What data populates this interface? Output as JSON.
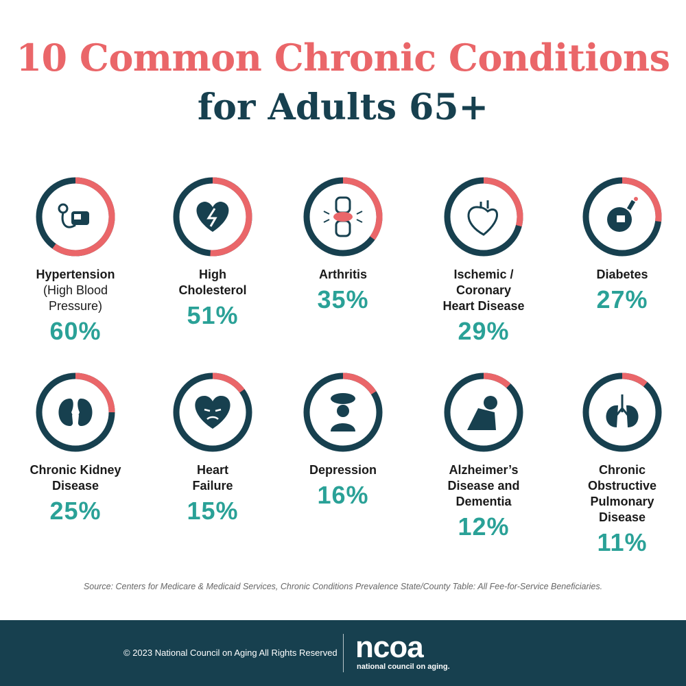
{
  "title_line1": "10 Common Chronic Conditions",
  "title_line2": "for Adults 65+",
  "colors": {
    "ring_filled": "#ea6669",
    "ring_rest": "#17404f",
    "percent": "#2aa197",
    "title_accent": "#ea6669",
    "title_dark": "#17404f"
  },
  "chart_data": {
    "type": "pie",
    "categories": [
      "Hypertension (High Blood Pressure)",
      "High Cholesterol",
      "Arthritis",
      "Ischemic / Coronary Heart Disease",
      "Diabetes",
      "Chronic Kidney Disease",
      "Heart Failure",
      "Depression",
      "Alzheimer’s Disease and Dementia",
      "Chronic Obstructive Pulmonary Disease"
    ],
    "values": [
      60,
      51,
      35,
      29,
      27,
      25,
      15,
      16,
      12,
      11
    ],
    "unit": "%"
  },
  "conditions": [
    {
      "icon": "blood-pressure-monitor-icon",
      "lines": [
        "Hypertension"
      ],
      "sub": [
        "(High Blood",
        "Pressure)"
      ],
      "value": 60,
      "percent": "60%"
    },
    {
      "icon": "broken-heart-icon",
      "lines": [
        "High",
        "Cholesterol"
      ],
      "sub": [],
      "value": 51,
      "percent": "51%"
    },
    {
      "icon": "knee-joint-icon",
      "lines": [
        "Arthritis"
      ],
      "sub": [],
      "value": 35,
      "percent": "35%"
    },
    {
      "icon": "heart-organ-icon",
      "lines": [
        "Ischemic /",
        "Coronary",
        "Heart Disease"
      ],
      "sub": [],
      "value": 29,
      "percent": "29%"
    },
    {
      "icon": "glucose-meter-icon",
      "lines": [
        "Diabetes"
      ],
      "sub": [],
      "value": 27,
      "percent": "27%"
    },
    {
      "icon": "kidneys-icon",
      "lines": [
        "Chronic Kidney",
        "Disease"
      ],
      "sub": [],
      "value": 25,
      "percent": "25%"
    },
    {
      "icon": "sad-heart-icon",
      "lines": [
        "Heart",
        "Failure"
      ],
      "sub": [],
      "value": 15,
      "percent": "15%"
    },
    {
      "icon": "person-rain-cloud-icon",
      "lines": [
        "Depression"
      ],
      "sub": [],
      "value": 16,
      "percent": "16%"
    },
    {
      "icon": "person-head-in-hands-icon",
      "lines": [
        "Alzheimer’s",
        "Disease and",
        "Dementia"
      ],
      "sub": [],
      "value": 12,
      "percent": "12%"
    },
    {
      "icon": "lungs-icon",
      "lines": [
        "Chronic",
        "Obstructive",
        "Pulmonary",
        "Disease"
      ],
      "sub": [],
      "value": 11,
      "percent": "11%"
    }
  ],
  "source": "Source: Centers for Medicare & Medicaid Services, Chronic Conditions Prevalence State/County Table: All Fee-for-Service Beneficiaries.",
  "footer": {
    "copyright": "© 2023 National Council on Aging All Rights Reserved",
    "logo_text": "ncoa",
    "logo_subtitle": "national council on aging."
  }
}
